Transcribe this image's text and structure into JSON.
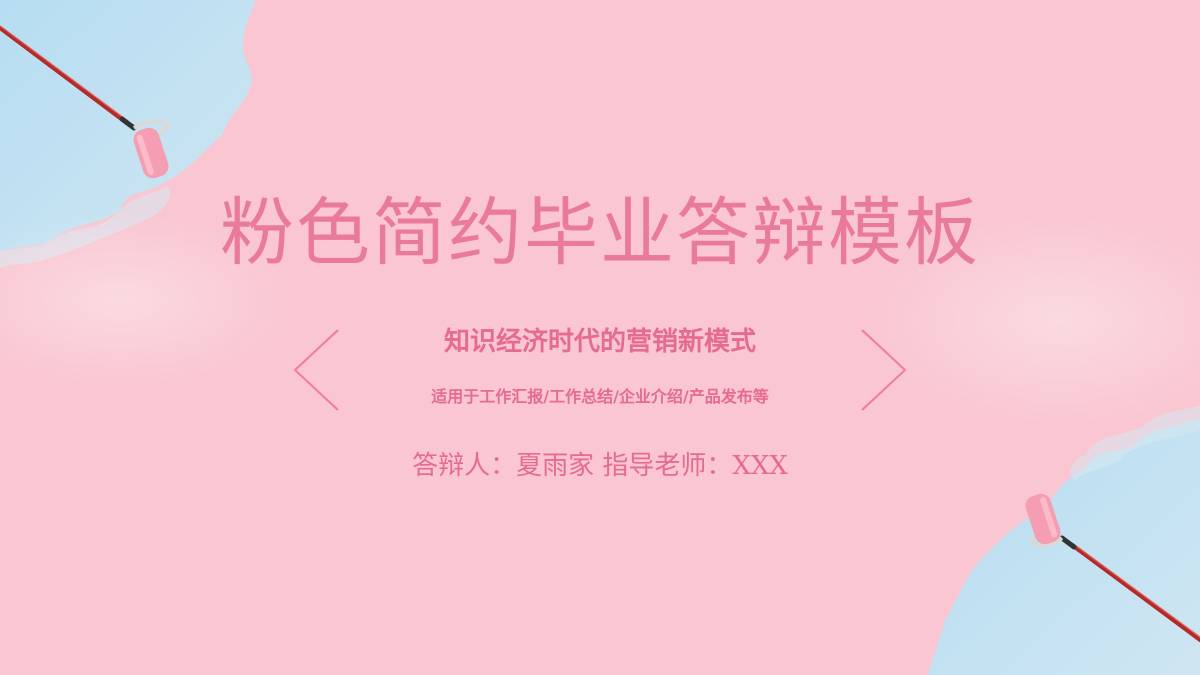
{
  "slide": {
    "title": "粉色简约毕业答辩模板",
    "subtitle": "知识经济时代的营销新模式",
    "tagline": "适用于工作汇报/工作总结/企业介绍/产品发布等",
    "presenter_line": "答辩人：夏雨家  指导老师：XXX"
  },
  "colors": {
    "background": "#f9c6d1",
    "accent_pink": "#ea7a9c",
    "sky_blue": "#bfe0f0"
  },
  "icons": [
    "paint-roller-icon",
    "chevron-left-icon",
    "chevron-right-icon"
  ]
}
